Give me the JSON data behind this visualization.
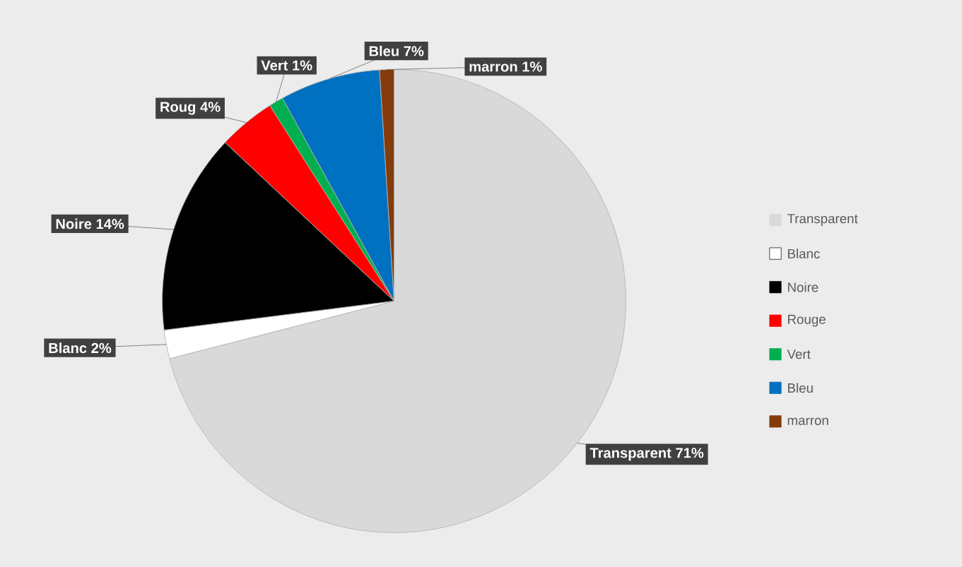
{
  "chart_data": {
    "type": "pie",
    "categories": [
      "Transparent",
      "Blanc",
      "Noire",
      "Rouge",
      "Vert",
      "Bleu",
      "marron"
    ],
    "values": [
      71,
      2,
      14,
      4,
      1,
      7,
      1
    ],
    "colors": [
      "#d9d9d9",
      "#ffffff",
      "#000000",
      "#ff0000",
      "#00b050",
      "#0070c0",
      "#843c0c"
    ],
    "value_labels": [
      "Transparent 71%",
      "Blanc 2%",
      "Noire 14%",
      "Roug 4%",
      "Vert 1%",
      "Bleu 7%",
      "marron 1%"
    ],
    "legend": "right"
  }
}
